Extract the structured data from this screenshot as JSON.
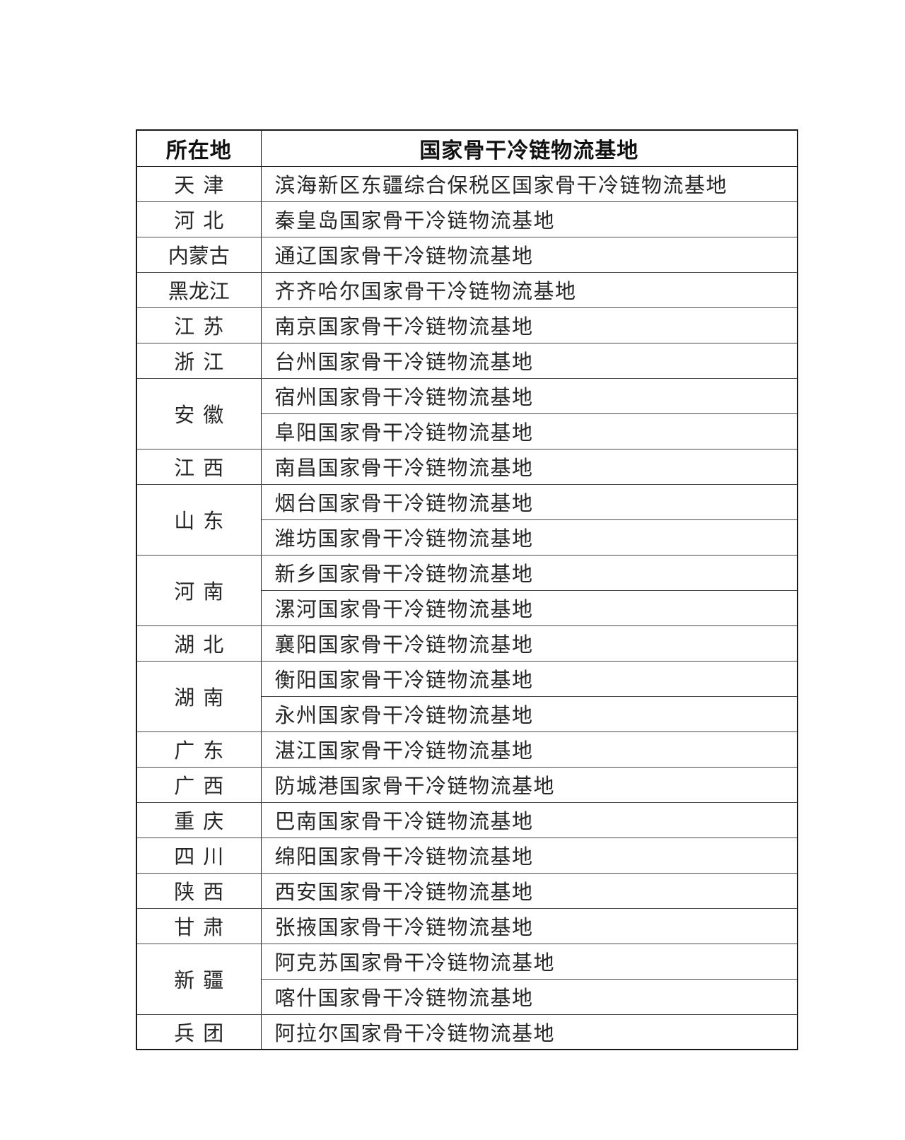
{
  "table": {
    "headers": {
      "location": "所在地",
      "base": "国家骨干冷链物流基地"
    },
    "rows": [
      {
        "province": "天津",
        "bases": [
          "滨海新区东疆综合保税区国家骨干冷链物流基地"
        ]
      },
      {
        "province": "河北",
        "bases": [
          "秦皇岛国家骨干冷链物流基地"
        ]
      },
      {
        "province": "内蒙古",
        "bases": [
          "通辽国家骨干冷链物流基地"
        ]
      },
      {
        "province": "黑龙江",
        "bases": [
          "齐齐哈尔国家骨干冷链物流基地"
        ]
      },
      {
        "province": "江苏",
        "bases": [
          "南京国家骨干冷链物流基地"
        ]
      },
      {
        "province": "浙江",
        "bases": [
          "台州国家骨干冷链物流基地"
        ]
      },
      {
        "province": "安徽",
        "bases": [
          "宿州国家骨干冷链物流基地",
          "阜阳国家骨干冷链物流基地"
        ]
      },
      {
        "province": "江西",
        "bases": [
          "南昌国家骨干冷链物流基地"
        ]
      },
      {
        "province": "山东",
        "bases": [
          "烟台国家骨干冷链物流基地",
          "潍坊国家骨干冷链物流基地"
        ]
      },
      {
        "province": "河南",
        "bases": [
          "新乡国家骨干冷链物流基地",
          "漯河国家骨干冷链物流基地"
        ]
      },
      {
        "province": "湖北",
        "bases": [
          "襄阳国家骨干冷链物流基地"
        ]
      },
      {
        "province": "湖南",
        "bases": [
          "衡阳国家骨干冷链物流基地",
          "永州国家骨干冷链物流基地"
        ]
      },
      {
        "province": "广东",
        "bases": [
          "湛江国家骨干冷链物流基地"
        ]
      },
      {
        "province": "广西",
        "bases": [
          "防城港国家骨干冷链物流基地"
        ]
      },
      {
        "province": "重庆",
        "bases": [
          "巴南国家骨干冷链物流基地"
        ]
      },
      {
        "province": "四川",
        "bases": [
          "绵阳国家骨干冷链物流基地"
        ]
      },
      {
        "province": "陕西",
        "bases": [
          "西安国家骨干冷链物流基地"
        ]
      },
      {
        "province": "甘肃",
        "bases": [
          "张掖国家骨干冷链物流基地"
        ]
      },
      {
        "province": "新疆",
        "bases": [
          "阿克苏国家骨干冷链物流基地",
          "喀什国家骨干冷链物流基地"
        ]
      },
      {
        "province": "兵团",
        "bases": [
          "阿拉尔国家骨干冷链物流基地"
        ]
      }
    ],
    "colors": {
      "outer_border": "#1a1a1a",
      "inner_border": "#4a4a4a",
      "subrow_border": "#9e9e9e",
      "text": "#262626",
      "page_background": "#ffffff"
    }
  }
}
